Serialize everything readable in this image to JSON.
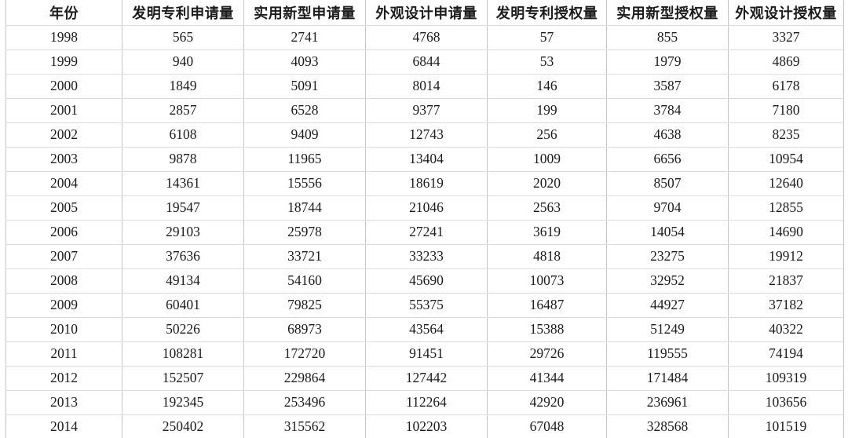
{
  "table": {
    "columns": [
      "年份",
      "发明专利申请量",
      "实用新型申请量",
      "外观设计申请量",
      "发明专利授权量",
      "实用新型授权量",
      "外观设计授权量"
    ]
  },
  "chart_data": {
    "type": "table",
    "title": "",
    "categories": [
      "1998",
      "1999",
      "2000",
      "2001",
      "2002",
      "2003",
      "2004",
      "2005",
      "2006",
      "2007",
      "2008",
      "2009",
      "2010",
      "2011",
      "2012",
      "2013",
      "2014"
    ],
    "categories_label": "年份",
    "series": [
      {
        "name": "发明专利申请量",
        "values": [
          565,
          940,
          1849,
          2857,
          6108,
          9878,
          14361,
          19547,
          29103,
          37636,
          49134,
          60401,
          50226,
          108281,
          152507,
          192345,
          250402
        ]
      },
      {
        "name": "实用新型申请量",
        "values": [
          2741,
          4093,
          5091,
          6528,
          9409,
          11965,
          15556,
          18744,
          25978,
          33721,
          54160,
          79825,
          68973,
          172720,
          229864,
          253496,
          315562
        ]
      },
      {
        "name": "外观设计申请量",
        "values": [
          4768,
          6844,
          8014,
          9377,
          12743,
          13404,
          18619,
          21046,
          27241,
          33233,
          45690,
          55375,
          43564,
          91451,
          127442,
          112264,
          102203
        ]
      },
      {
        "name": "发明专利授权量",
        "values": [
          57,
          53,
          146,
          199,
          256,
          1009,
          2020,
          2563,
          3619,
          4818,
          10073,
          16487,
          15388,
          29726,
          41344,
          42920,
          67048
        ]
      },
      {
        "name": "实用新型授权量",
        "values": [
          855,
          1979,
          3587,
          3784,
          4638,
          6656,
          8507,
          9704,
          14054,
          23275,
          32952,
          44927,
          51249,
          119555,
          171484,
          236961,
          328568
        ]
      },
      {
        "name": "外观设计授权量",
        "values": [
          3327,
          4869,
          6178,
          7180,
          8235,
          10954,
          12640,
          12855,
          14690,
          19912,
          21837,
          37182,
          40322,
          74194,
          109319,
          103656,
          101519
        ]
      }
    ]
  },
  "colors": {
    "background": "#ffffff",
    "grid_horizontal": "#d9dde3",
    "grid_vertical": "#c3c7cd",
    "text": "#1c1c1c"
  }
}
